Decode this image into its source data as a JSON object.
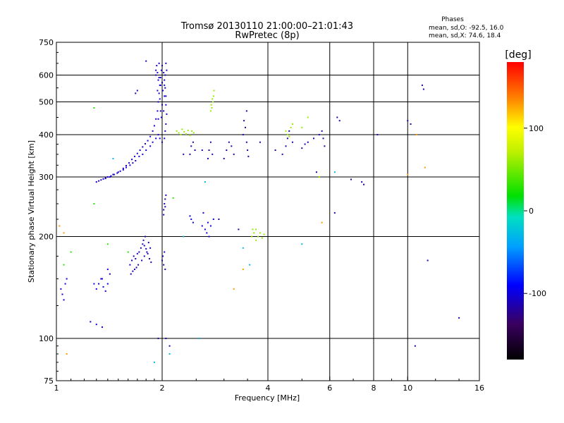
{
  "chart_data": {
    "type": "scatter",
    "title": "Tromsø 20130110 21:00:00–21:01:43",
    "subtitle": "RwPretec (8p)",
    "xlabel": "Frequency [MHz]",
    "ylabel": "Stationary phase Virtual Height [km]",
    "x_scale": "log",
    "y_scale": "log",
    "xlim": [
      1,
      16
    ],
    "ylim": [
      75,
      750
    ],
    "x_ticks": [
      1,
      2,
      4,
      6,
      8,
      10,
      16
    ],
    "y_ticks": [
      75,
      100,
      200,
      300,
      400,
      500,
      600,
      750
    ],
    "grid_x": [
      2,
      4,
      6,
      8,
      10
    ],
    "grid_y": [
      100,
      200,
      300,
      400,
      500,
      600
    ],
    "phase_stats": {
      "title": "Phases",
      "line1": "mean, sd,O:  -92.5,  16.0",
      "line2": "mean, sd,X:  74.6,  18.4"
    },
    "colorbar": {
      "label": "[deg]",
      "range": [
        -180,
        180
      ],
      "ticks": [
        "100",
        "0",
        "-100"
      ],
      "tick_values": [
        100,
        0,
        -100
      ]
    },
    "series": [
      {
        "phase": -105,
        "points": [
          [
            1.3,
            290
          ],
          [
            1.32,
            292
          ],
          [
            1.34,
            294
          ],
          [
            1.36,
            296
          ],
          [
            1.38,
            298
          ],
          [
            1.4,
            300
          ],
          [
            1.43,
            302
          ],
          [
            1.46,
            305
          ],
          [
            1.49,
            308
          ],
          [
            1.52,
            312
          ],
          [
            1.55,
            318
          ],
          [
            1.58,
            324
          ],
          [
            1.61,
            330
          ],
          [
            1.64,
            338
          ],
          [
            1.67,
            345
          ],
          [
            1.7,
            352
          ],
          [
            1.73,
            360
          ],
          [
            1.76,
            368
          ],
          [
            1.79,
            376
          ],
          [
            1.82,
            384
          ],
          [
            1.85,
            395
          ],
          [
            1.88,
            410
          ],
          [
            1.9,
            425
          ],
          [
            1.92,
            445
          ],
          [
            1.94,
            470
          ],
          [
            1.95,
            500
          ],
          [
            1.96,
            530
          ],
          [
            1.97,
            560
          ],
          [
            1.98,
            590
          ],
          [
            1.99,
            620
          ],
          [
            1.93,
            640
          ],
          [
            1.96,
            650
          ],
          [
            2.0,
            640
          ],
          [
            2.02,
            610
          ],
          [
            2.03,
            580
          ],
          [
            2.04,
            550
          ],
          [
            2.05,
            520
          ],
          [
            2.05,
            490
          ],
          [
            2.06,
            460
          ],
          [
            2.05,
            430
          ],
          [
            2.04,
            410
          ],
          [
            2.03,
            390
          ],
          [
            2.0,
            380
          ],
          [
            1.97,
            390
          ],
          [
            1.95,
            400
          ],
          [
            1.92,
            390
          ],
          [
            1.88,
            380
          ],
          [
            1.85,
            370
          ],
          [
            1.8,
            360
          ],
          [
            1.76,
            350
          ],
          [
            1.72,
            345
          ],
          [
            1.68,
            335
          ],
          [
            1.65,
            330
          ],
          [
            1.62,
            325
          ],
          [
            1.58,
            320
          ],
          [
            1.55,
            315
          ],
          [
            1.5,
            310
          ],
          [
            1.45,
            305
          ],
          [
            1.42,
            300
          ],
          [
            1.38,
            297
          ],
          [
            1.92,
            600
          ],
          [
            1.95,
            580
          ],
          [
            1.98,
            560
          ],
          [
            2.01,
            540
          ],
          [
            2.03,
            520
          ],
          [
            1.94,
            540
          ],
          [
            1.97,
            510
          ],
          [
            2.0,
            490
          ],
          [
            2.02,
            470
          ],
          [
            1.99,
            450
          ],
          [
            1.95,
            445
          ],
          [
            1.98,
            470
          ],
          [
            2.04,
            600
          ],
          [
            2.06,
            620
          ],
          [
            2.05,
            650
          ],
          [
            1.92,
            620
          ],
          [
            1.94,
            610
          ],
          [
            1.96,
            590
          ],
          [
            2.0,
            570
          ],
          [
            2.03,
            560
          ]
        ]
      },
      {
        "phase": -110,
        "points": [
          [
            1.62,
            165
          ],
          [
            1.64,
            170
          ],
          [
            1.66,
            175
          ],
          [
            1.68,
            172
          ],
          [
            1.7,
            178
          ],
          [
            1.72,
            180
          ],
          [
            1.74,
            185
          ],
          [
            1.76,
            190
          ],
          [
            1.78,
            188
          ],
          [
            1.8,
            184
          ],
          [
            1.82,
            178
          ],
          [
            1.84,
            172
          ],
          [
            1.86,
            168
          ],
          [
            1.63,
            155
          ],
          [
            1.65,
            158
          ],
          [
            1.67,
            160
          ],
          [
            1.69,
            162
          ],
          [
            1.71,
            165
          ],
          [
            1.75,
            170
          ],
          [
            1.78,
            175
          ],
          [
            1.81,
            180
          ],
          [
            1.77,
            195
          ],
          [
            1.79,
            200
          ],
          [
            1.83,
            192
          ],
          [
            1.85,
            185
          ],
          [
            2.0,
            170
          ],
          [
            2.02,
            165
          ],
          [
            2.04,
            160
          ],
          [
            2.01,
            175
          ],
          [
            2.03,
            180
          ],
          [
            2.02,
            240
          ],
          [
            2.03,
            250
          ],
          [
            2.04,
            258
          ],
          [
            2.05,
            265
          ],
          [
            2.02,
            232
          ],
          [
            2.04,
            245
          ]
        ]
      },
      {
        "phase": -100,
        "points": [
          [
            1.03,
            140
          ],
          [
            1.04,
            135
          ],
          [
            1.05,
            130
          ],
          [
            1.06,
            145
          ],
          [
            1.07,
            150
          ],
          [
            1.3,
            140
          ],
          [
            1.32,
            145
          ],
          [
            1.34,
            150
          ],
          [
            1.36,
            142
          ],
          [
            1.38,
            138
          ],
          [
            1.4,
            145
          ],
          [
            1.42,
            155
          ],
          [
            1.4,
            160
          ],
          [
            1.35,
            150
          ],
          [
            1.28,
            145
          ],
          [
            1.25,
            112
          ],
          [
            1.3,
            110
          ],
          [
            1.35,
            108
          ],
          [
            2.4,
            230
          ],
          [
            2.42,
            225
          ],
          [
            2.45,
            220
          ],
          [
            2.6,
            215
          ],
          [
            2.65,
            210
          ],
          [
            2.7,
            220
          ],
          [
            2.75,
            215
          ],
          [
            2.8,
            225
          ],
          [
            2.62,
            235
          ],
          [
            2.68,
            205
          ],
          [
            2.72,
            200
          ]
        ]
      },
      {
        "phase": -115,
        "points": [
          [
            2.4,
            350
          ],
          [
            2.42,
            370
          ],
          [
            2.45,
            380
          ],
          [
            2.48,
            360
          ],
          [
            2.7,
            340
          ],
          [
            2.72,
            360
          ],
          [
            2.75,
            380
          ],
          [
            2.78,
            350
          ],
          [
            3.0,
            340
          ],
          [
            3.05,
            360
          ],
          [
            3.1,
            380
          ],
          [
            3.15,
            370
          ],
          [
            3.2,
            350
          ],
          [
            3.4,
            400
          ],
          [
            3.45,
            420
          ],
          [
            3.48,
            380
          ],
          [
            3.5,
            360
          ],
          [
            3.52,
            345
          ],
          [
            3.42,
            440
          ],
          [
            3.48,
            470
          ],
          [
            4.5,
            370
          ],
          [
            4.55,
            390
          ],
          [
            4.6,
            410
          ],
          [
            4.7,
            380
          ],
          [
            5.0,
            365
          ],
          [
            5.1,
            375
          ],
          [
            5.2,
            380
          ],
          [
            5.4,
            390
          ],
          [
            5.6,
            400
          ],
          [
            5.7,
            410
          ],
          [
            5.8,
            370
          ],
          [
            5.75,
            390
          ],
          [
            6.3,
            450
          ],
          [
            6.4,
            440
          ],
          [
            6.9,
            295
          ],
          [
            7.4,
            290
          ],
          [
            7.5,
            285
          ],
          [
            8.2,
            400
          ],
          [
            10.0,
            440
          ],
          [
            10.2,
            430
          ],
          [
            11.0,
            560
          ],
          [
            11.1,
            545
          ],
          [
            11.4,
            170
          ],
          [
            14.0,
            115
          ],
          [
            10.5,
            95
          ],
          [
            2.05,
            100
          ],
          [
            2.1,
            95
          ],
          [
            1.95,
            100
          ],
          [
            1.8,
            660
          ],
          [
            1.7,
            540
          ],
          [
            1.68,
            530
          ],
          [
            2.6,
            360
          ],
          [
            2.3,
            350
          ],
          [
            3.8,
            380
          ],
          [
            4.2,
            360
          ],
          [
            4.4,
            350
          ],
          [
            5.5,
            310
          ],
          [
            6.2,
            235
          ],
          [
            3.3,
            210
          ],
          [
            2.9,
            225
          ]
        ]
      },
      {
        "phase": 60,
        "points": [
          [
            2.2,
            410
          ],
          [
            2.23,
            405
          ],
          [
            2.26,
            400
          ],
          [
            2.28,
            415
          ],
          [
            2.31,
            408
          ],
          [
            2.34,
            402
          ],
          [
            2.37,
            412
          ],
          [
            2.4,
            398
          ],
          [
            2.43,
            410
          ],
          [
            2.46,
            405
          ],
          [
            2.75,
            470
          ],
          [
            2.77,
            480
          ],
          [
            2.79,
            500
          ],
          [
            2.8,
            520
          ],
          [
            2.81,
            540
          ],
          [
            2.78,
            510
          ],
          [
            2.76,
            490
          ],
          [
            4.5,
            410
          ],
          [
            4.55,
            400
          ],
          [
            4.6,
            395
          ],
          [
            4.65,
            420
          ],
          [
            4.7,
            430
          ],
          [
            3.6,
            200
          ],
          [
            3.65,
            205
          ],
          [
            3.7,
            210
          ],
          [
            3.75,
            200
          ],
          [
            3.8,
            205
          ],
          [
            3.85,
            198
          ],
          [
            3.9,
            203
          ],
          [
            3.7,
            195
          ],
          [
            3.62,
            210
          ],
          [
            5.0,
            420
          ],
          [
            5.2,
            450
          ],
          [
            5.6,
            300
          ]
        ]
      },
      {
        "phase": 130,
        "points": [
          [
            3.4,
            160
          ],
          [
            3.2,
            140
          ],
          [
            10.0,
            305
          ],
          [
            11.2,
            320
          ],
          [
            10.6,
            400
          ],
          [
            5.7,
            220
          ],
          [
            1.05,
            205
          ],
          [
            1.02,
            215
          ],
          [
            1.07,
            90
          ]
        ]
      },
      {
        "phase": 30,
        "points": [
          [
            1.28,
            480
          ],
          [
            1.28,
            250
          ],
          [
            2.15,
            260
          ],
          [
            1.6,
            180
          ],
          [
            1.4,
            190
          ],
          [
            1.05,
            165
          ],
          [
            1.1,
            180
          ]
        ]
      },
      {
        "phase": -30,
        "points": [
          [
            1.45,
            340
          ],
          [
            2.55,
            100
          ],
          [
            2.65,
            290
          ],
          [
            2.3,
            200
          ],
          [
            3.55,
            165
          ],
          [
            5.0,
            190
          ],
          [
            6.2,
            310
          ],
          [
            2.1,
            90
          ],
          [
            1.9,
            85
          ],
          [
            3.4,
            185
          ]
        ]
      }
    ]
  }
}
